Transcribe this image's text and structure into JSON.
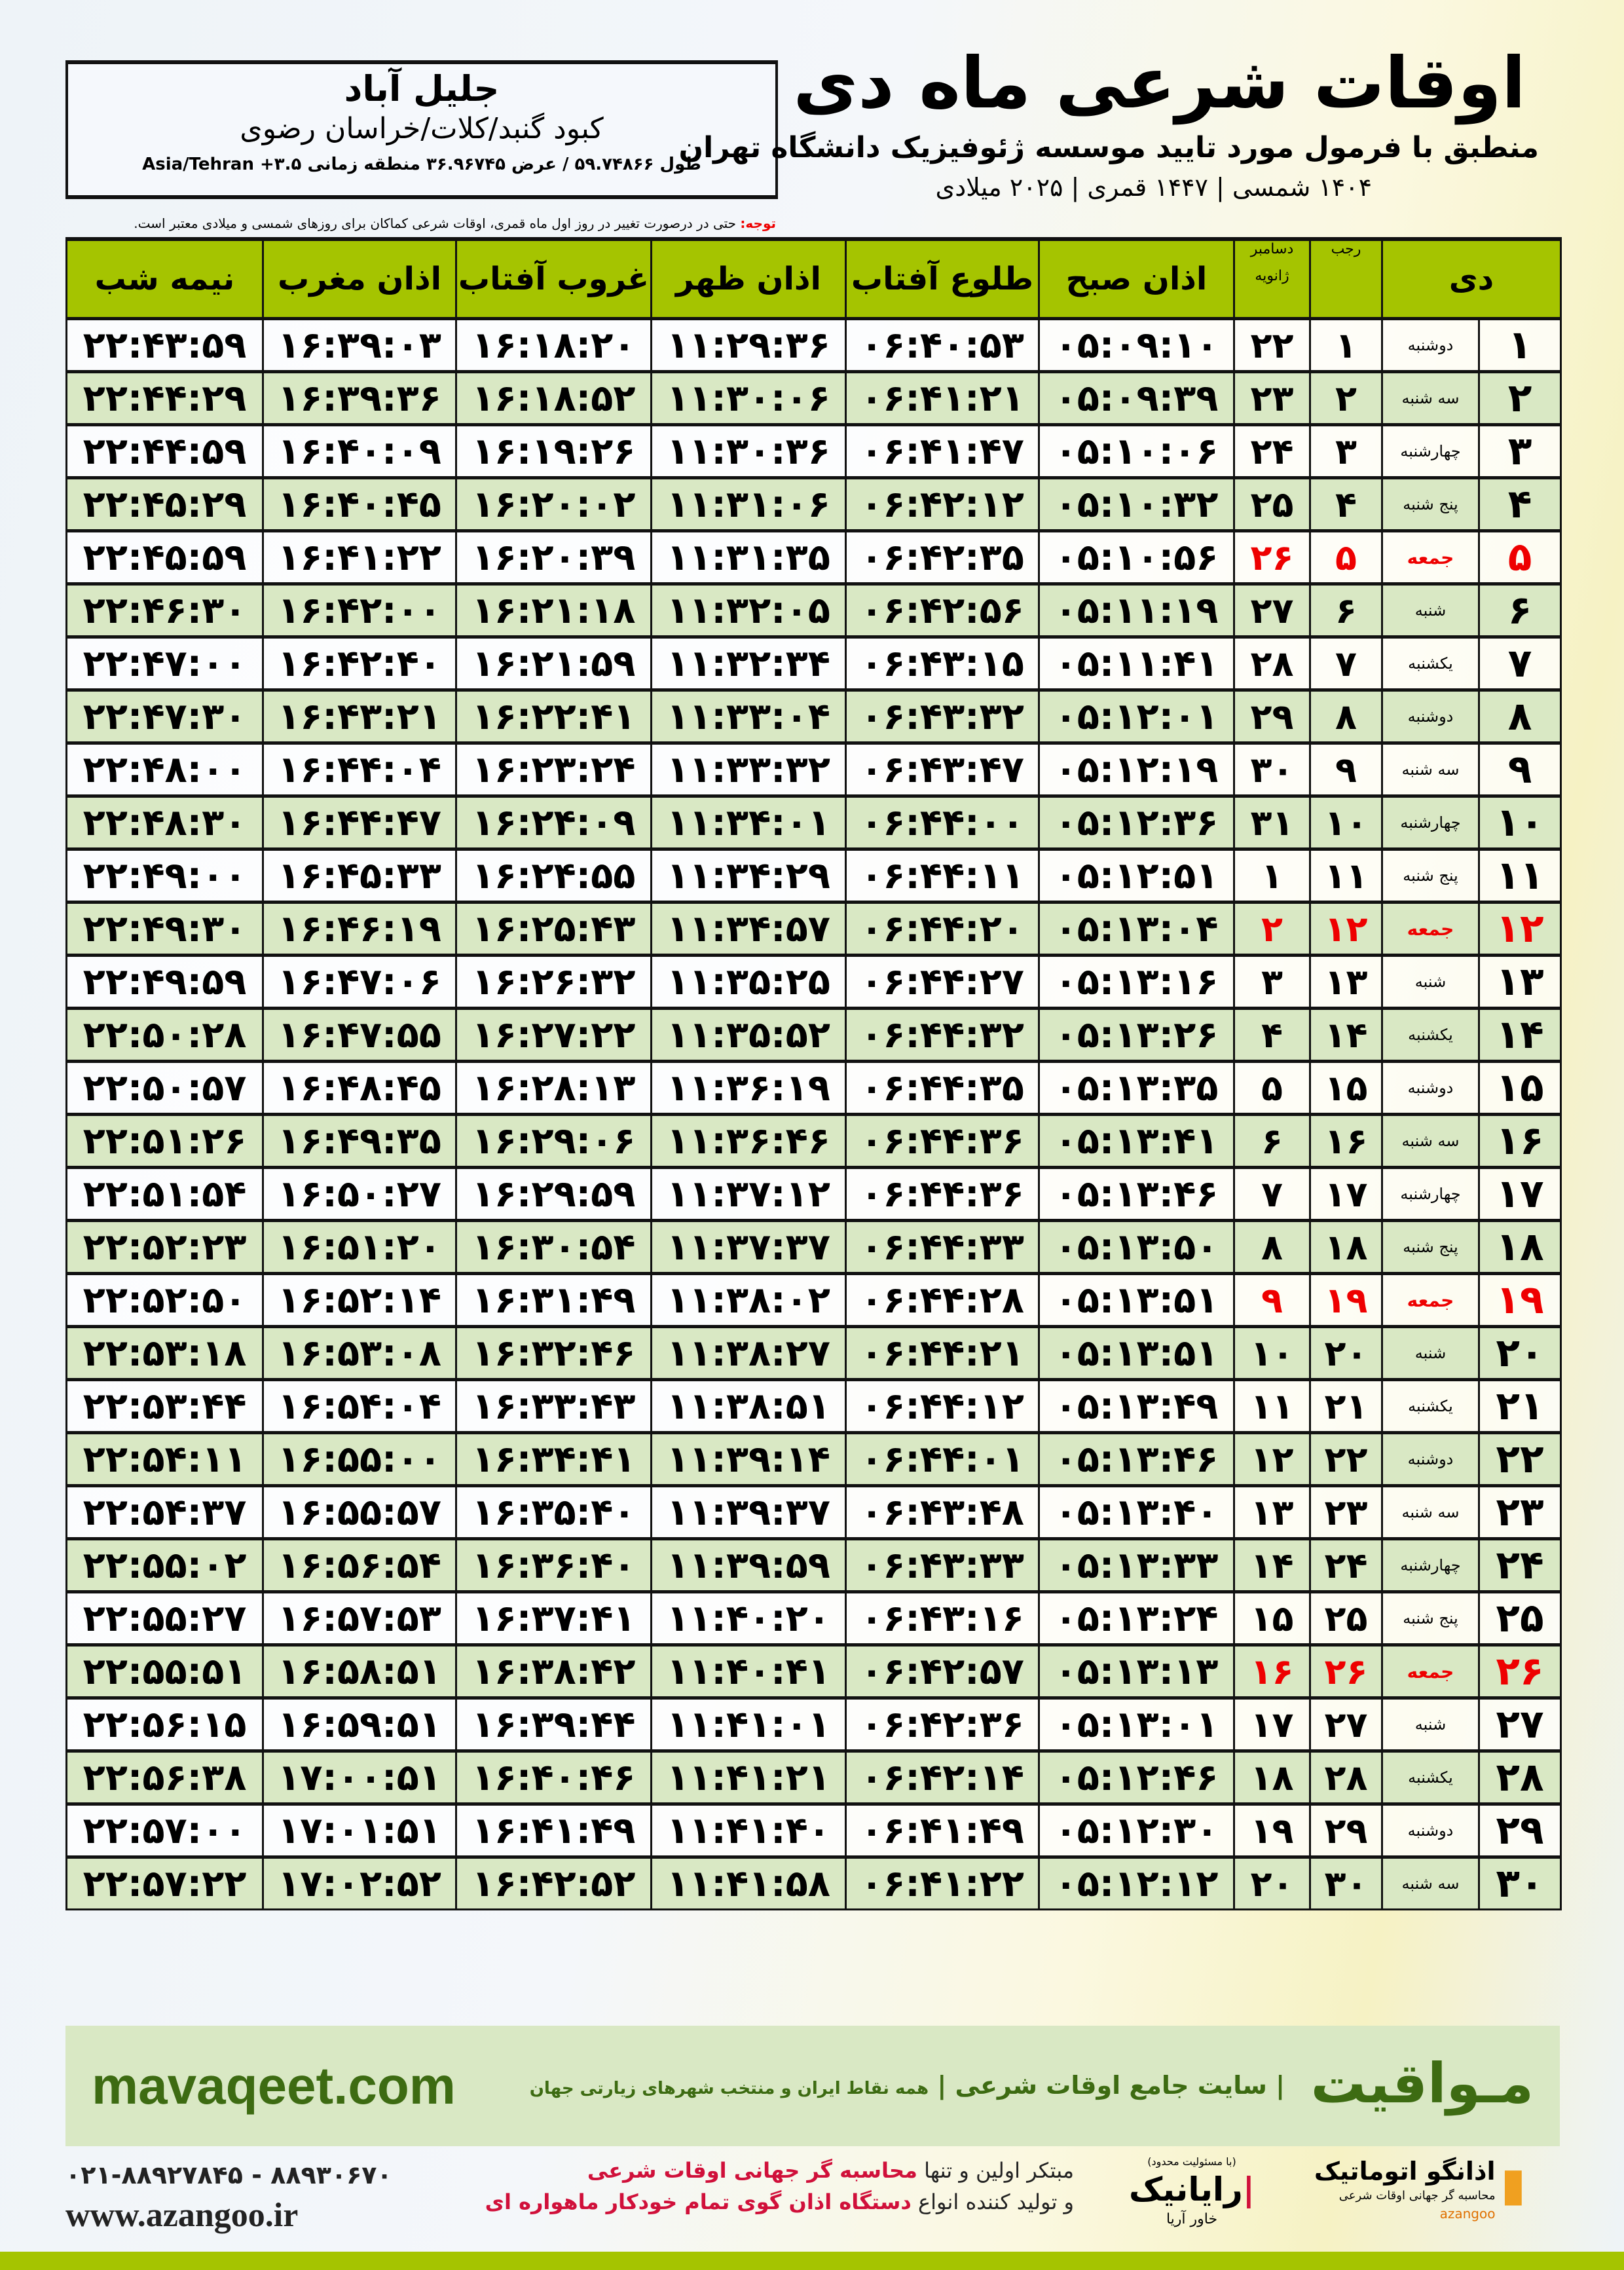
{
  "location": {
    "city": "جلیل آباد",
    "region": "کبود گنبد/کلات/خراسان رضوی",
    "coords": "طول ۵۹.۷۴۸۶۶ / عرض ۳۶.۹۶۷۴۵ منطقه زمانی ۳.۵+ Asia/Tehran"
  },
  "header": {
    "title": "اوقات شرعی ماه دی",
    "subtitle": "منطبق با فرمول مورد تایید موسسه ژئوفیزیک دانشگاه تهران",
    "years": "۱۴۰۴ شمسی | ۱۴۴۷ قمری | ۲۰۲۵ میلادی"
  },
  "note": {
    "label": "توجه:",
    "text": " حتی در درصورت تغییر در روز اول ماه قمری، اوقات شرعی کماکان برای روزهای شمسی و میلادی معتبر است."
  },
  "table": {
    "headers": {
      "day": "دی",
      "rajab": "رجب",
      "greg_top": "دسامبر",
      "greg_bottom": "ژانویه",
      "fajr": "اذان صبح",
      "sunrise": "طلوع آفتاب",
      "dhuhr": "اذان ظهر",
      "sunset": "غروب آفتاب",
      "maghrib": "اذان مغرب",
      "midnight": "نیمه شب"
    },
    "highlight_color": "#e00000",
    "rows": [
      [
        "۱",
        "دوشنبه",
        "۱",
        "۲۲",
        "۰۵:۰۹:۱۰",
        "۰۶:۴۰:۵۳",
        "۱۱:۲۹:۳۶",
        "۱۶:۱۸:۲۰",
        "۱۶:۳۹:۰۳",
        "۲۲:۴۳:۵۹"
      ],
      [
        "۲",
        "سه شنبه",
        "۲",
        "۲۳",
        "۰۵:۰۹:۳۹",
        "۰۶:۴۱:۲۱",
        "۱۱:۳۰:۰۶",
        "۱۶:۱۸:۵۲",
        "۱۶:۳۹:۳۶",
        "۲۲:۴۴:۲۹"
      ],
      [
        "۳",
        "چهارشنبه",
        "۳",
        "۲۴",
        "۰۵:۱۰:۰۶",
        "۰۶:۴۱:۴۷",
        "۱۱:۳۰:۳۶",
        "۱۶:۱۹:۲۶",
        "۱۶:۴۰:۰۹",
        "۲۲:۴۴:۵۹"
      ],
      [
        "۴",
        "پنج شنبه",
        "۴",
        "۲۵",
        "۰۵:۱۰:۳۲",
        "۰۶:۴۲:۱۲",
        "۱۱:۳۱:۰۶",
        "۱۶:۲۰:۰۲",
        "۱۶:۴۰:۴۵",
        "۲۲:۴۵:۲۹"
      ],
      [
        "۵",
        "جمعه",
        "۵",
        "۲۶",
        "۰۵:۱۰:۵۶",
        "۰۶:۴۲:۳۵",
        "۱۱:۳۱:۳۵",
        "۱۶:۲۰:۳۹",
        "۱۶:۴۱:۲۲",
        "۲۲:۴۵:۵۹"
      ],
      [
        "۶",
        "شنبه",
        "۶",
        "۲۷",
        "۰۵:۱۱:۱۹",
        "۰۶:۴۲:۵۶",
        "۱۱:۳۲:۰۵",
        "۱۶:۲۱:۱۸",
        "۱۶:۴۲:۰۰",
        "۲۲:۴۶:۳۰"
      ],
      [
        "۷",
        "یکشنبه",
        "۷",
        "۲۸",
        "۰۵:۱۱:۴۱",
        "۰۶:۴۳:۱۵",
        "۱۱:۳۲:۳۴",
        "۱۶:۲۱:۵۹",
        "۱۶:۴۲:۴۰",
        "۲۲:۴۷:۰۰"
      ],
      [
        "۸",
        "دوشنبه",
        "۸",
        "۲۹",
        "۰۵:۱۲:۰۱",
        "۰۶:۴۳:۳۲",
        "۱۱:۳۳:۰۴",
        "۱۶:۲۲:۴۱",
        "۱۶:۴۳:۲۱",
        "۲۲:۴۷:۳۰"
      ],
      [
        "۹",
        "سه شنبه",
        "۹",
        "۳۰",
        "۰۵:۱۲:۱۹",
        "۰۶:۴۳:۴۷",
        "۱۱:۳۳:۳۲",
        "۱۶:۲۳:۲۴",
        "۱۶:۴۴:۰۴",
        "۲۲:۴۸:۰۰"
      ],
      [
        "۱۰",
        "چهارشنبه",
        "۱۰",
        "۳۱",
        "۰۵:۱۲:۳۶",
        "۰۶:۴۴:۰۰",
        "۱۱:۳۴:۰۱",
        "۱۶:۲۴:۰۹",
        "۱۶:۴۴:۴۷",
        "۲۲:۴۸:۳۰"
      ],
      [
        "۱۱",
        "پنج شنبه",
        "۱۱",
        "۱",
        "۰۵:۱۲:۵۱",
        "۰۶:۴۴:۱۱",
        "۱۱:۳۴:۲۹",
        "۱۶:۲۴:۵۵",
        "۱۶:۴۵:۳۳",
        "۲۲:۴۹:۰۰"
      ],
      [
        "۱۲",
        "جمعه",
        "۱۲",
        "۲",
        "۰۵:۱۳:۰۴",
        "۰۶:۴۴:۲۰",
        "۱۱:۳۴:۵۷",
        "۱۶:۲۵:۴۳",
        "۱۶:۴۶:۱۹",
        "۲۲:۴۹:۳۰"
      ],
      [
        "۱۳",
        "شنبه",
        "۱۳",
        "۳",
        "۰۵:۱۳:۱۶",
        "۰۶:۴۴:۲۷",
        "۱۱:۳۵:۲۵",
        "۱۶:۲۶:۳۲",
        "۱۶:۴۷:۰۶",
        "۲۲:۴۹:۵۹"
      ],
      [
        "۱۴",
        "یکشنبه",
        "۱۴",
        "۴",
        "۰۵:۱۳:۲۶",
        "۰۶:۴۴:۳۲",
        "۱۱:۳۵:۵۲",
        "۱۶:۲۷:۲۲",
        "۱۶:۴۷:۵۵",
        "۲۲:۵۰:۲۸"
      ],
      [
        "۱۵",
        "دوشنبه",
        "۱۵",
        "۵",
        "۰۵:۱۳:۳۵",
        "۰۶:۴۴:۳۵",
        "۱۱:۳۶:۱۹",
        "۱۶:۲۸:۱۳",
        "۱۶:۴۸:۴۵",
        "۲۲:۵۰:۵۷"
      ],
      [
        "۱۶",
        "سه شنبه",
        "۱۶",
        "۶",
        "۰۵:۱۳:۴۱",
        "۰۶:۴۴:۳۶",
        "۱۱:۳۶:۴۶",
        "۱۶:۲۹:۰۶",
        "۱۶:۴۹:۳۵",
        "۲۲:۵۱:۲۶"
      ],
      [
        "۱۷",
        "چهارشنبه",
        "۱۷",
        "۷",
        "۰۵:۱۳:۴۶",
        "۰۶:۴۴:۳۶",
        "۱۱:۳۷:۱۲",
        "۱۶:۲۹:۵۹",
        "۱۶:۵۰:۲۷",
        "۲۲:۵۱:۵۴"
      ],
      [
        "۱۸",
        "پنج شنبه",
        "۱۸",
        "۸",
        "۰۵:۱۳:۵۰",
        "۰۶:۴۴:۳۳",
        "۱۱:۳۷:۳۷",
        "۱۶:۳۰:۵۴",
        "۱۶:۵۱:۲۰",
        "۲۲:۵۲:۲۳"
      ],
      [
        "۱۹",
        "جمعه",
        "۱۹",
        "۹",
        "۰۵:۱۳:۵۱",
        "۰۶:۴۴:۲۸",
        "۱۱:۳۸:۰۲",
        "۱۶:۳۱:۴۹",
        "۱۶:۵۲:۱۴",
        "۲۲:۵۲:۵۰"
      ],
      [
        "۲۰",
        "شنبه",
        "۲۰",
        "۱۰",
        "۰۵:۱۳:۵۱",
        "۰۶:۴۴:۲۱",
        "۱۱:۳۸:۲۷",
        "۱۶:۳۲:۴۶",
        "۱۶:۵۳:۰۸",
        "۲۲:۵۳:۱۸"
      ],
      [
        "۲۱",
        "یکشنبه",
        "۲۱",
        "۱۱",
        "۰۵:۱۳:۴۹",
        "۰۶:۴۴:۱۲",
        "۱۱:۳۸:۵۱",
        "۱۶:۳۳:۴۳",
        "۱۶:۵۴:۰۴",
        "۲۲:۵۳:۴۴"
      ],
      [
        "۲۲",
        "دوشنبه",
        "۲۲",
        "۱۲",
        "۰۵:۱۳:۴۶",
        "۰۶:۴۴:۰۱",
        "۱۱:۳۹:۱۴",
        "۱۶:۳۴:۴۱",
        "۱۶:۵۵:۰۰",
        "۲۲:۵۴:۱۱"
      ],
      [
        "۲۳",
        "سه شنبه",
        "۲۳",
        "۱۳",
        "۰۵:۱۳:۴۰",
        "۰۶:۴۳:۴۸",
        "۱۱:۳۹:۳۷",
        "۱۶:۳۵:۴۰",
        "۱۶:۵۵:۵۷",
        "۲۲:۵۴:۳۷"
      ],
      [
        "۲۴",
        "چهارشنبه",
        "۲۴",
        "۱۴",
        "۰۵:۱۳:۳۳",
        "۰۶:۴۳:۳۳",
        "۱۱:۳۹:۵۹",
        "۱۶:۳۶:۴۰",
        "۱۶:۵۶:۵۴",
        "۲۲:۵۵:۰۲"
      ],
      [
        "۲۵",
        "پنج شنبه",
        "۲۵",
        "۱۵",
        "۰۵:۱۳:۲۴",
        "۰۶:۴۳:۱۶",
        "۱۱:۴۰:۲۰",
        "۱۶:۳۷:۴۱",
        "۱۶:۵۷:۵۳",
        "۲۲:۵۵:۲۷"
      ],
      [
        "۲۶",
        "جمعه",
        "۲۶",
        "۱۶",
        "۰۵:۱۳:۱۳",
        "۰۶:۴۲:۵۷",
        "۱۱:۴۰:۴۱",
        "۱۶:۳۸:۴۲",
        "۱۶:۵۸:۵۱",
        "۲۲:۵۵:۵۱"
      ],
      [
        "۲۷",
        "شنبه",
        "۲۷",
        "۱۷",
        "۰۵:۱۳:۰۱",
        "۰۶:۴۲:۳۶",
        "۱۱:۴۱:۰۱",
        "۱۶:۳۹:۴۴",
        "۱۶:۵۹:۵۱",
        "۲۲:۵۶:۱۵"
      ],
      [
        "۲۸",
        "یکشنبه",
        "۲۸",
        "۱۸",
        "۰۵:۱۲:۴۶",
        "۰۶:۴۲:۱۴",
        "۱۱:۴۱:۲۱",
        "۱۶:۴۰:۴۶",
        "۱۷:۰۰:۵۱",
        "۲۲:۵۶:۳۸"
      ],
      [
        "۲۹",
        "دوشنبه",
        "۲۹",
        "۱۹",
        "۰۵:۱۲:۳۰",
        "۰۶:۴۱:۴۹",
        "۱۱:۴۱:۴۰",
        "۱۶:۴۱:۴۹",
        "۱۷:۰۱:۵۱",
        "۲۲:۵۷:۰۰"
      ],
      [
        "۳۰",
        "سه شنبه",
        "۳۰",
        "۲۰",
        "۰۵:۱۲:۱۲",
        "۰۶:۴۱:۲۲",
        "۱۱:۴۱:۵۸",
        "۱۶:۴۲:۵۲",
        "۱۷:۰۲:۵۲",
        "۲۲:۵۷:۲۲"
      ]
    ]
  },
  "banner": {
    "brand": "مـواقیت",
    "tagline": "| سایت جامع اوقات شرعی |",
    "tagline_small": "همه نقاط ایران و منتخب شهرهای زیارتی جهان",
    "site": "mavaqeet.com"
  },
  "footer": {
    "phone": "۰۲۱-۸۸۹۲۷۸۴۵ - ۸۸۹۳۰۶۷۰",
    "web": "www.azangoo.ir",
    "promo1_a": "مبتکر اولین و تنها ",
    "promo1_b": "محاسبه گر جهانی اوقات شرعی",
    "promo2_a": "و تولید کننده انواع ",
    "promo2_b": "دستگاه اذان گوی تمام خودکار ماهواره ای",
    "logo_rayanik": "رایانیک",
    "logo_rayanik_sub": "خاور آریا",
    "logo_rayanik_note": "(با مسئولیت محدود)",
    "logo_azangoo": "اذانگو اتوماتیک",
    "logo_azangoo_sub": "محاسبه گر جهانی اوقات شرعی",
    "logo_azangoo_en": "azangoo"
  }
}
